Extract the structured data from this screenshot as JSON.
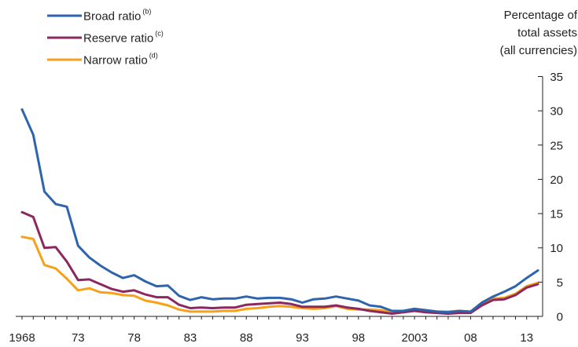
{
  "chart_data": {
    "type": "line",
    "ylabel_lines": [
      "Percentage of",
      "total assets",
      "(all currencies)"
    ],
    "ylim": [
      0,
      35
    ],
    "xlim": [
      1968,
      2014
    ],
    "yticks": [
      0,
      5,
      10,
      15,
      20,
      25,
      30,
      35
    ],
    "xticks": [
      {
        "year": 1968,
        "label": "1968"
      },
      {
        "year": 1973,
        "label": "73"
      },
      {
        "year": 1978,
        "label": "78"
      },
      {
        "year": 1983,
        "label": "83"
      },
      {
        "year": 1988,
        "label": "88"
      },
      {
        "year": 1993,
        "label": "93"
      },
      {
        "year": 1998,
        "label": "98"
      },
      {
        "year": 2003,
        "label": "2003"
      },
      {
        "year": 2008,
        "label": "08"
      },
      {
        "year": 2013,
        "label": "13"
      }
    ],
    "legend_position": "top-left",
    "x": [
      1968,
      1969,
      1970,
      1971,
      1972,
      1973,
      1974,
      1975,
      1976,
      1977,
      1978,
      1979,
      1980,
      1981,
      1982,
      1983,
      1984,
      1985,
      1986,
      1987,
      1988,
      1989,
      1990,
      1991,
      1992,
      1993,
      1994,
      1995,
      1996,
      1997,
      1998,
      1999,
      2000,
      2001,
      2002,
      2003,
      2004,
      2005,
      2006,
      2007,
      2008,
      2009,
      2010,
      2011,
      2012,
      2013,
      2014
    ],
    "series": [
      {
        "name": "Broad ratio",
        "sup": "(b)",
        "color": "#2e64ad",
        "values": [
          30.2,
          26.5,
          18.2,
          16.4,
          16.0,
          10.3,
          8.6,
          7.4,
          6.4,
          5.6,
          6.0,
          5.1,
          4.4,
          4.5,
          3.0,
          2.4,
          2.8,
          2.5,
          2.6,
          2.6,
          2.9,
          2.6,
          2.7,
          2.7,
          2.5,
          2.0,
          2.5,
          2.6,
          2.9,
          2.6,
          2.3,
          1.6,
          1.4,
          0.8,
          0.8,
          1.1,
          0.9,
          0.7,
          0.6,
          0.8,
          0.7,
          2.0,
          2.9,
          3.6,
          4.4,
          5.6,
          6.7
        ]
      },
      {
        "name": "Reserve ratio",
        "sup": "(c)",
        "color": "#8b2860",
        "values": [
          15.2,
          14.5,
          10.0,
          10.1,
          8.0,
          5.3,
          5.4,
          4.7,
          4.0,
          3.6,
          3.8,
          3.2,
          2.8,
          2.8,
          1.7,
          1.2,
          1.3,
          1.2,
          1.3,
          1.3,
          1.7,
          1.8,
          1.9,
          2.0,
          1.8,
          1.4,
          1.4,
          1.4,
          1.6,
          1.3,
          1.1,
          0.8,
          0.6,
          0.4,
          0.6,
          0.8,
          0.6,
          0.5,
          0.4,
          0.5,
          0.5,
          1.6,
          2.4,
          2.5,
          3.1,
          4.2,
          4.7
        ]
      },
      {
        "name": "Narrow ratio",
        "sup": "(d)",
        "color": "#f7a11a",
        "values": [
          11.6,
          11.3,
          7.5,
          7.0,
          5.5,
          3.8,
          4.1,
          3.5,
          3.4,
          3.1,
          3.0,
          2.3,
          2.0,
          1.6,
          1.0,
          0.7,
          0.7,
          0.7,
          0.8,
          0.8,
          1.1,
          1.2,
          1.4,
          1.5,
          1.4,
          1.2,
          1.1,
          1.2,
          1.5,
          1.1,
          1.0,
          1.0,
          0.9,
          0.6,
          0.8,
          1.1,
          0.9,
          0.7,
          0.7,
          0.8,
          0.6,
          1.7,
          2.6,
          2.7,
          3.3,
          4.4,
          4.9
        ]
      }
    ]
  }
}
